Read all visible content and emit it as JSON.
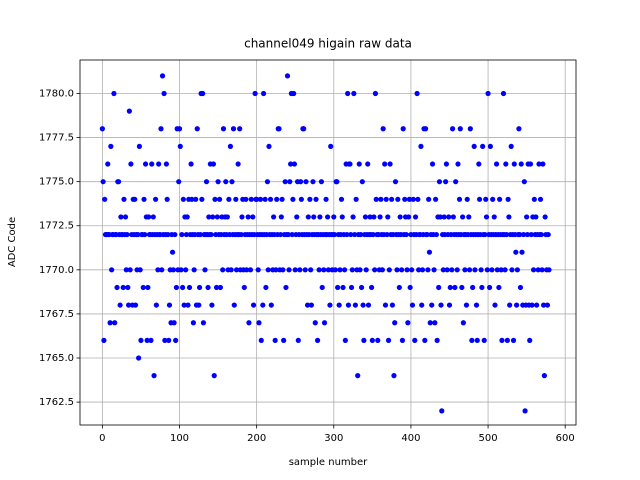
{
  "chart_data": {
    "type": "scatter",
    "title": "channel049 higain raw data",
    "xlabel": "sample number",
    "ylabel": "ADC Code",
    "color": "#0000ff",
    "grid": true,
    "xlim": [
      -29,
      614
    ],
    "xticks": [
      0,
      100,
      200,
      300,
      400,
      500,
      600
    ],
    "ylim": [
      1761.2,
      1781.9
    ],
    "yticks": [
      1762.5,
      {
        "value": 1765,
        "label": "1765.0"
      },
      1767.5,
      {
        "value": 1770,
        "label": "1770.0"
      },
      1772.5,
      {
        "value": 1775,
        "label": "1775.0"
      },
      1777.5,
      {
        "value": 1780,
        "label": "1780.0"
      }
    ],
    "x": [
      0,
      1,
      2,
      3,
      4,
      5,
      6,
      7,
      8,
      9,
      10,
      11,
      12,
      13,
      14,
      15,
      16,
      17,
      18,
      19,
      20,
      21,
      22,
      23,
      24,
      25,
      26,
      27,
      28,
      29,
      30,
      31,
      32,
      33,
      34,
      35,
      36,
      37,
      38,
      39,
      40,
      41,
      42,
      43,
      44,
      45,
      46,
      47,
      48,
      49,
      50,
      51,
      52,
      53,
      54,
      55,
      56,
      57,
      58,
      59,
      60,
      61,
      62,
      63,
      64,
      65,
      66,
      67,
      68,
      69,
      70,
      71,
      72,
      73,
      74,
      75,
      76,
      77,
      78,
      79,
      80,
      81,
      82,
      83,
      84,
      85,
      86,
      87,
      88,
      89,
      90,
      91,
      92,
      93,
      94,
      95,
      96,
      97,
      98,
      99,
      100,
      101,
      102,
      103,
      104,
      105,
      106,
      107,
      108,
      109,
      110,
      111,
      112,
      113,
      114,
      115,
      116,
      117,
      118,
      119,
      120,
      121,
      122,
      123,
      124,
      125,
      126,
      127,
      128,
      129,
      130,
      131,
      132,
      133,
      134,
      135,
      136,
      137,
      138,
      139,
      140,
      141,
      142,
      143,
      144,
      145,
      146,
      147,
      148,
      149,
      150,
      151,
      152,
      153,
      154,
      155,
      156,
      157,
      158,
      159,
      160,
      161,
      162,
      163,
      164,
      165,
      166,
      167,
      168,
      169,
      170,
      171,
      172,
      173,
      174,
      175,
      176,
      177,
      178,
      179,
      180,
      181,
      182,
      183,
      184,
      185,
      186,
      187,
      188,
      189,
      190,
      191,
      192,
      193,
      194,
      195,
      196,
      197,
      198,
      199,
      200,
      201,
      202,
      203,
      204,
      205,
      206,
      207,
      208,
      209,
      210,
      211,
      212,
      213,
      214,
      215,
      216,
      217,
      218,
      219,
      220,
      221,
      222,
      223,
      224,
      225,
      226,
      227,
      228,
      229,
      230,
      231,
      232,
      233,
      234,
      235,
      236,
      237,
      238,
      239,
      240,
      241,
      242,
      243,
      244,
      245,
      246,
      247,
      248,
      249,
      250,
      251,
      252,
      253,
      254,
      255,
      256,
      257,
      258,
      259,
      260,
      261,
      262,
      263,
      264,
      265,
      266,
      267,
      268,
      269,
      270,
      271,
      272,
      273,
      274,
      275,
      276,
      277,
      278,
      279,
      280,
      281,
      282,
      283,
      284,
      285,
      286,
      287,
      288,
      289,
      290,
      291,
      292,
      293,
      294,
      295,
      296,
      297,
      298,
      299,
      300,
      301,
      302,
      303,
      304,
      305,
      306,
      307,
      308,
      309,
      310,
      311,
      312,
      313,
      314,
      315,
      316,
      317,
      318,
      319,
      320,
      321,
      322,
      323,
      324,
      325,
      326,
      327,
      328,
      329,
      330,
      331,
      332,
      333,
      334,
      335,
      336,
      337,
      338,
      339,
      340,
      341,
      342,
      343,
      344,
      345,
      346,
      347,
      348,
      349,
      350,
      351,
      352,
      353,
      354,
      355,
      356,
      357,
      358,
      359,
      360,
      361,
      362,
      363,
      364,
      365,
      366,
      367,
      368,
      369,
      370,
      371,
      372,
      373,
      374,
      375,
      376,
      377,
      378,
      379,
      380,
      381,
      382,
      383,
      384,
      385,
      386,
      387,
      388,
      389,
      390,
      391,
      392,
      393,
      394,
      395,
      396,
      397,
      398,
      399,
      400,
      401,
      402,
      403,
      404,
      405,
      406,
      407,
      408,
      409,
      410,
      411,
      412,
      413,
      414,
      415,
      416,
      417,
      418,
      419,
      420,
      421,
      422,
      423,
      424,
      425,
      426,
      427,
      428,
      429,
      430,
      431,
      432,
      433,
      434,
      435,
      436,
      437,
      438,
      439,
      440,
      441,
      442,
      443,
      444,
      445,
      446,
      447,
      448,
      449,
      450,
      451,
      452,
      453,
      454,
      455,
      456,
      457,
      458,
      459,
      460,
      461,
      462,
      463,
      464,
      465,
      466,
      467,
      468,
      469,
      470,
      471,
      472,
      473,
      474,
      475,
      476,
      477,
      478,
      479,
      480,
      481,
      482,
      483,
      484,
      485,
      486,
      487,
      488,
      489,
      490,
      491,
      492,
      493,
      494,
      495,
      496,
      497,
      498,
      499,
      500,
      501,
      502,
      503,
      504,
      505,
      506,
      507,
      508,
      509,
      510,
      511,
      512,
      513,
      514,
      515,
      516,
      517,
      518,
      519,
      520,
      521,
      522,
      523,
      524,
      525,
      526,
      527,
      528,
      529,
      530,
      531,
      532,
      533,
      534,
      535,
      536,
      537,
      538,
      539,
      540,
      541,
      542,
      543,
      544,
      545,
      546,
      547,
      548,
      549,
      550,
      551,
      552,
      553,
      554,
      555,
      556,
      557,
      558,
      559,
      560,
      561,
      562,
      563,
      564,
      565,
      566,
      567,
      568,
      569,
      570,
      571,
      572,
      573,
      574,
      575,
      576,
      577,
      578,
      579
    ],
    "values": [
      1778,
      1775,
      1766,
      1774,
      1772,
      1772,
      1772,
      1776,
      1772,
      1772,
      1767,
      1777,
      1770,
      1772,
      1772,
      1780,
      1767,
      1772,
      1772,
      1769,
      1775,
      1775,
      1772,
      1768,
      1773,
      1772,
      1772,
      1769,
      1774,
      1772,
      1773,
      1770,
      1772,
      1769,
      1768,
      1779,
      1770,
      1776,
      1772,
      1768,
      1774,
      1772,
      1774,
      1768,
      1772,
      1770,
      1772,
      1765,
      1777,
      1770,
      1766,
      1772,
      1772,
      1769,
      1774,
      1772,
      1776,
      1773,
      1766,
      1769,
      1773,
      1772,
      1772,
      1766,
      1776,
      1772,
      1773,
      1764,
      1772,
      1774,
      1768,
      1772,
      1770,
      1776,
      1772,
      1772,
      1778,
      1770,
      1781,
      1772,
      1780,
      1766,
      1772,
      1776,
      1774,
      1772,
      1766,
      1768,
      1770,
      1767,
      1772,
      1771,
      1770,
      1767,
      1772,
      1766,
      1769,
      1778,
      1770,
      1775,
      1778,
      1777,
      1770,
      1772,
      1769,
      1774,
      1768,
      1773,
      1770,
      1772,
      1773,
      1768,
      1774,
      1769,
      1772,
      1776,
      1774,
      1772,
      1767,
      1770,
      1772,
      1774,
      1768,
      1778,
      1772,
      1768,
      1769,
      1772,
      1780,
      1774,
      1780,
      1767,
      1772,
      1770,
      1772,
      1775,
      1772,
      1769,
      1773,
      1772,
      1776,
      1772,
      1768,
      1773,
      1776,
      1764,
      1774,
      1772,
      1769,
      1773,
      1775,
      1772,
      1774,
      1769,
      1772,
      1773,
      1770,
      1778,
      1772,
      1773,
      1775,
      1772,
      1773,
      1770,
      1774,
      1772,
      1777,
      1770,
      1775,
      1772,
      1778,
      1768,
      1772,
      1774,
      1770,
      1772,
      1776,
      1772,
      1778,
      1770,
      1772,
      1773,
      1774,
      1770,
      1769,
      1772,
      1774,
      1770,
      1772,
      1773,
      1767,
      1772,
      1770,
      1774,
      1772,
      1773,
      1768,
      1772,
      1780,
      1774,
      1774,
      1772,
      1770,
      1767,
      1772,
      1774,
      1766,
      1772,
      1768,
      1780,
      1772,
      1774,
      1769,
      1772,
      1775,
      1770,
      1777,
      1772,
      1774,
      1768,
      1772,
      1770,
      1773,
      1772,
      1766,
      1770,
      1774,
      1772,
      1778,
      1778,
      1770,
      1772,
      1773,
      1774,
      1770,
      1766,
      1772,
      1775,
      1769,
      1772,
      1781,
      1772,
      1770,
      1775,
      1776,
      1780,
      1772,
      1774,
      1780,
      1776,
      1770,
      1772,
      1773,
      1775,
      1766,
      1772,
      1770,
      1775,
      1774,
      1772,
      1778,
      1778,
      1772,
      1770,
      1775,
      1772,
      1768,
      1773,
      1772,
      1774,
      1770,
      1768,
      1772,
      1775,
      1773,
      1772,
      1767,
      1774,
      1772,
      1766,
      1772,
      1770,
      1773,
      1772,
      1775,
      1769,
      1772,
      1770,
      1767,
      1772,
      1774,
      1772,
      1773,
      1770,
      1772,
      1768,
      1777,
      1772,
      1770,
      1772,
      1773,
      1772,
      1770,
      1775,
      1775,
      1769,
      1772,
      1768,
      1770,
      1772,
      1774,
      1773,
      1769,
      1772,
      1770,
      1766,
      1776,
      1772,
      1780,
      1768,
      1776,
      1776,
      1772,
      1769,
      1770,
      1773,
      1780,
      1772,
      1768,
      1774,
      1770,
      1764,
      1772,
      1776,
      1770,
      1772,
      1769,
      1775,
      1768,
      1766,
      1772,
      1773,
      1770,
      1772,
      1776,
      1768,
      1772,
      1773,
      1772,
      1769,
      1766,
      1772,
      1773,
      1770,
      1780,
      1774,
      1772,
      1766,
      1772,
      1770,
      1773,
      1774,
      1772,
      1770,
      1778,
      1772,
      1776,
      1768,
      1774,
      1772,
      1773,
      1766,
      1770,
      1776,
      1772,
      1774,
      1768,
      1772,
      1764,
      1767,
      1775,
      1772,
      1770,
      1774,
      1772,
      1769,
      1773,
      1772,
      1770,
      1766,
      1778,
      1772,
      1774,
      1773,
      1772,
      1770,
      1767,
      1773,
      1774,
      1769,
      1772,
      1770,
      1768,
      1774,
      1772,
      1766,
      1773,
      1772,
      1780,
      1774,
      1770,
      1772,
      1772,
      1777,
      1768,
      1770,
      1772,
      1778,
      1766,
      1778,
      1772,
      1772,
      1770,
      1774,
      1771,
      1767,
      1772,
      1768,
      1776,
      1772,
      1770,
      1767,
      1774,
      1772,
      1766,
      1773,
      1769,
      1775,
      1773,
      1768,
      1762,
      1772,
      1770,
      1773,
      1772,
      1775,
      1776,
      1770,
      1772,
      1773,
      1768,
      1769,
      1772,
      1770,
      1778,
      1773,
      1772,
      1769,
      1775,
      1772,
      1770,
      1776,
      1772,
      1774,
      1778,
      1772,
      1769,
      1773,
      1767,
      1772,
      1770,
      1772,
      1768,
      1774,
      1772,
      1773,
      1770,
      1778,
      1772,
      1766,
      1769,
      1772,
      1777,
      1770,
      1772,
      1768,
      1766,
      1772,
      1776,
      1774,
      1772,
      1770,
      1769,
      1777,
      1772,
      1766,
      1772,
      1774,
      1773,
      1770,
      1780,
      1772,
      1769,
      1777,
      1772,
      1770,
      1774,
      1772,
      1773,
      1768,
      1772,
      1776,
      1770,
      1772,
      1769,
      1774,
      1772,
      1770,
      1766,
      1772,
      1780,
      1772,
      1770,
      1776,
      1772,
      1766,
      1774,
      1773,
      1768,
      1772,
      1777,
      1770,
      1772,
      1766,
      1776,
      1772,
      1771,
      1768,
      1770,
      1772,
      1778,
      1772,
      1769,
      1776,
      1771,
      1768,
      1772,
      1775,
      1762,
      1768,
      1773,
      1772,
      1776,
      1768,
      1766,
      1776,
      1772,
      1768,
      1773,
      1770,
      1774,
      1772,
      1773,
      1768,
      1772,
      1770,
      1776,
      1772,
      1774,
      1772,
      1770,
      1776,
      1768,
      1764,
      1773,
      1772,
      1770,
      1768,
      1772,
      1770
    ]
  }
}
